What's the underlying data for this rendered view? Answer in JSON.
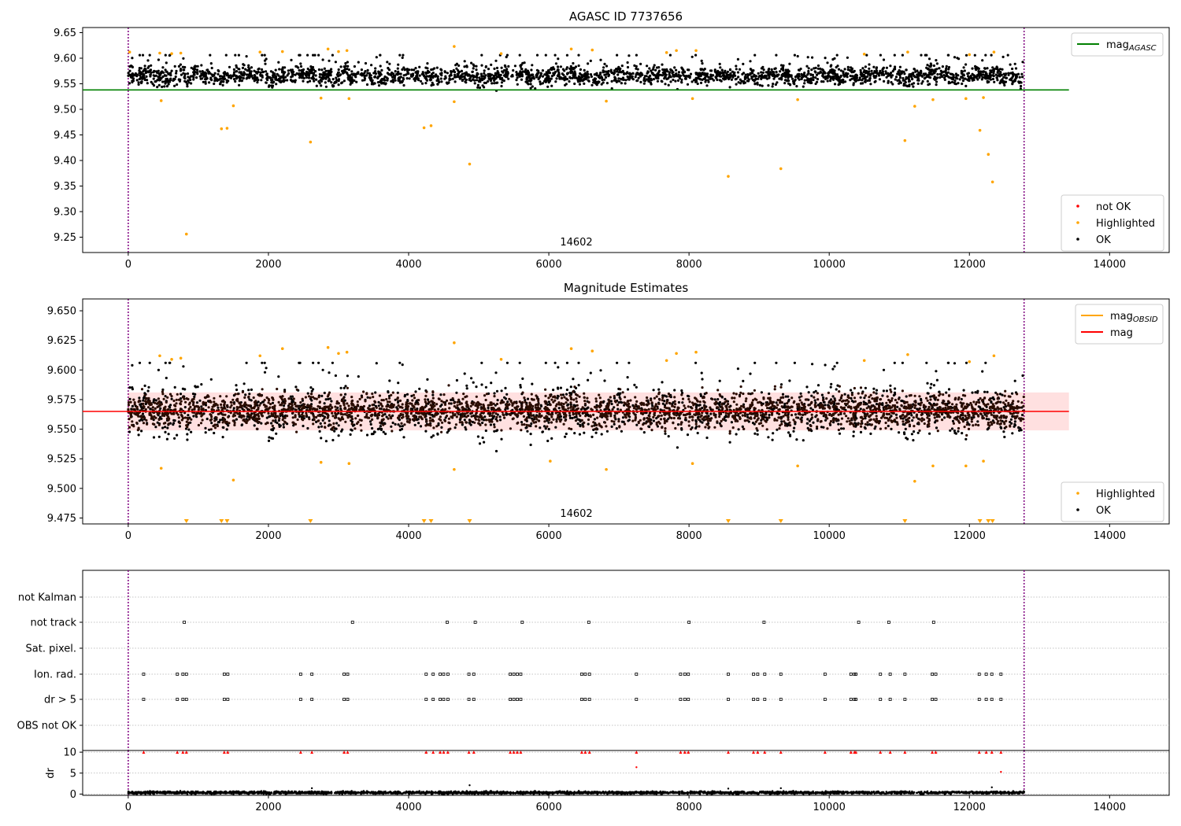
{
  "chart_data": [
    {
      "type": "scatter",
      "title": "AGASC ID 7737656",
      "xlim": [
        -650,
        14850
      ],
      "ylim": [
        9.22,
        9.66
      ],
      "xticks": [
        0,
        2000,
        4000,
        6000,
        8000,
        10000,
        12000,
        14000
      ],
      "yticks": [
        9.25,
        9.3,
        9.35,
        9.4,
        9.45,
        9.5,
        9.55,
        9.6,
        9.65
      ],
      "vlines": [
        0,
        12780
      ],
      "hlines": [
        {
          "name": "mag_AGASC",
          "y": 9.538,
          "x_range": [
            -650,
            13420
          ],
          "color": "#008000"
        }
      ],
      "annotation": "14602",
      "bulk": {
        "x_range": [
          0,
          12780
        ],
        "center": 9.566,
        "low": 9.53,
        "high": 9.606,
        "color": "#000000"
      },
      "highlighted_points": [
        [
          20,
          9.612
        ],
        [
          470,
          9.517
        ],
        [
          830,
          9.256
        ],
        [
          1330,
          9.462
        ],
        [
          1410,
          9.463
        ],
        [
          1500,
          9.507
        ],
        [
          2600,
          9.436
        ],
        [
          2750,
          9.522
        ],
        [
          3150,
          9.521
        ],
        [
          4220,
          9.464
        ],
        [
          4320,
          9.468
        ],
        [
          4650,
          9.515
        ],
        [
          4870,
          9.393
        ],
        [
          6820,
          9.516
        ],
        [
          8050,
          9.521
        ],
        [
          8560,
          9.369
        ],
        [
          9310,
          9.384
        ],
        [
          9550,
          9.519
        ],
        [
          11080,
          9.439
        ],
        [
          11220,
          9.506
        ],
        [
          11480,
          9.519
        ],
        [
          11950,
          9.521
        ],
        [
          12150,
          9.459
        ],
        [
          12200,
          9.523
        ],
        [
          12270,
          9.412
        ],
        [
          12330,
          9.358
        ],
        [
          450,
          9.61
        ],
        [
          620,
          9.609
        ],
        [
          750,
          9.61
        ],
        [
          1880,
          9.612
        ],
        [
          2200,
          9.613
        ],
        [
          2850,
          9.618
        ],
        [
          3000,
          9.613
        ],
        [
          3120,
          9.615
        ],
        [
          4650,
          9.623
        ],
        [
          5320,
          9.609
        ],
        [
          6320,
          9.618
        ],
        [
          6620,
          9.616
        ],
        [
          7680,
          9.611
        ],
        [
          7820,
          9.615
        ],
        [
          8100,
          9.615
        ],
        [
          10500,
          9.608
        ],
        [
          11120,
          9.612
        ],
        [
          12000,
          9.607
        ],
        [
          12350,
          9.612
        ]
      ],
      "legend": {
        "top": [
          {
            "label": "mag",
            "sub": "AGASC",
            "color": "#008000",
            "marker": "line"
          }
        ],
        "bottom": [
          {
            "label": "not OK",
            "color": "#ff0000",
            "marker": "dot"
          },
          {
            "label": "Highlighted",
            "color": "#ffa500",
            "marker": "dot"
          },
          {
            "label": "OK",
            "color": "#000000",
            "marker": "dot"
          }
        ]
      }
    },
    {
      "type": "scatter",
      "title": "Magnitude Estimates",
      "xlim": [
        -650,
        14850
      ],
      "ylim": [
        9.47,
        9.66
      ],
      "xticks": [
        0,
        2000,
        4000,
        6000,
        8000,
        10000,
        12000,
        14000
      ],
      "yticks": [
        9.475,
        9.5,
        9.525,
        9.55,
        9.575,
        9.6,
        9.625,
        9.65
      ],
      "vlines": [
        0,
        12780
      ],
      "hlines": [
        {
          "name": "mag",
          "y": 9.565,
          "x_range": [
            -650,
            13420
          ],
          "color": "#ff0000"
        },
        {
          "name": "mag_OBSID",
          "y": 9.565,
          "x_range": [
            0,
            12780
          ],
          "color": "#ffa500"
        }
      ],
      "band": {
        "y_range": [
          9.549,
          9.581
        ],
        "x_range": [
          0,
          13420
        ],
        "color": "#ff000022"
      },
      "annotation": "14602",
      "bulk": {
        "x_range": [
          0,
          12780
        ],
        "center": 9.565,
        "low": 9.52,
        "high": 9.606,
        "color": "#000000"
      },
      "highlighted_points": [
        [
          470,
          9.517
        ],
        [
          1500,
          9.507
        ],
        [
          2750,
          9.522
        ],
        [
          3150,
          9.521
        ],
        [
          4650,
          9.516
        ],
        [
          6020,
          9.523
        ],
        [
          6820,
          9.516
        ],
        [
          8050,
          9.521
        ],
        [
          9550,
          9.519
        ],
        [
          11220,
          9.506
        ],
        [
          11480,
          9.519
        ],
        [
          11950,
          9.519
        ],
        [
          12200,
          9.523
        ],
        [
          450,
          9.612
        ],
        [
          620,
          9.609
        ],
        [
          750,
          9.61
        ],
        [
          1880,
          9.612
        ],
        [
          2200,
          9.618
        ],
        [
          2850,
          9.619
        ],
        [
          3000,
          9.614
        ],
        [
          3120,
          9.615
        ],
        [
          4650,
          9.623
        ],
        [
          5320,
          9.609
        ],
        [
          6320,
          9.618
        ],
        [
          6620,
          9.616
        ],
        [
          7680,
          9.608
        ],
        [
          7820,
          9.614
        ],
        [
          8100,
          9.615
        ],
        [
          10500,
          9.608
        ],
        [
          11120,
          9.613
        ],
        [
          12000,
          9.607
        ],
        [
          12350,
          9.612
        ]
      ],
      "clipped_below": [
        830,
        1330,
        1410,
        2600,
        4220,
        4320,
        4870,
        8560,
        9310,
        11080,
        12150,
        12270,
        12330
      ],
      "legend": {
        "top": [
          {
            "label": "mag",
            "sub": "OBSID",
            "color": "#ffa500",
            "marker": "line"
          },
          {
            "label": "mag",
            "sub": "",
            "color": "#ff0000",
            "marker": "line"
          }
        ],
        "bottom": [
          {
            "label": "Highlighted",
            "color": "#ffa500",
            "marker": "dot"
          },
          {
            "label": "OK",
            "color": "#000000",
            "marker": "dot"
          }
        ]
      }
    },
    {
      "type": "scatter",
      "title": "",
      "xlim": [
        -650,
        14850
      ],
      "categories": [
        "not Kalman",
        "not track",
        "Sat. pixel.",
        "Ion. rad.",
        "dr > 5",
        "OBS not OK"
      ],
      "flag_rows": {
        "not track": [
          800,
          3200,
          4550,
          4950,
          5620,
          6570,
          8000,
          9070,
          10420,
          10850,
          11490
        ],
        "Ion. rad.": [
          220,
          700,
          780,
          830,
          1370,
          1420,
          2460,
          2620,
          3080,
          3130,
          4250,
          4350,
          4450,
          4500,
          4560,
          4860,
          4930,
          5450,
          5500,
          5550,
          5600,
          6470,
          6520,
          6580,
          7250,
          7880,
          7940,
          7990,
          8560,
          8920,
          8980,
          9080,
          9310,
          9940,
          10310,
          10360,
          10380,
          10730,
          10870,
          11080,
          11470,
          11520,
          12140,
          12240,
          12320,
          12450
        ],
        "dr > 5": [
          220,
          700,
          780,
          830,
          1370,
          1420,
          2460,
          2620,
          3080,
          3130,
          4250,
          4350,
          4450,
          4500,
          4560,
          4860,
          4930,
          5450,
          5500,
          5550,
          5600,
          6470,
          6520,
          6580,
          7250,
          7880,
          7940,
          7990,
          8560,
          8920,
          8980,
          9080,
          9310,
          9940,
          10310,
          10360,
          10380,
          10730,
          10870,
          11080,
          11470,
          11520,
          12140,
          12240,
          12320,
          12450
        ]
      },
      "vlines": [
        0,
        12780
      ]
    },
    {
      "type": "scatter",
      "title": "",
      "xlim": [
        -650,
        14850
      ],
      "ylim": [
        -0.3,
        10.4
      ],
      "ylabel": "dr",
      "yticks": [
        0,
        5,
        10
      ],
      "xticks": [
        0,
        2000,
        4000,
        6000,
        8000,
        10000,
        12000,
        14000
      ],
      "vlines": [
        0,
        12780
      ],
      "bulk": {
        "x_range": [
          0,
          12780
        ],
        "center": 0.35,
        "low": 0.0,
        "high": 0.75,
        "color": "#000000"
      },
      "outliers": [
        [
          2620,
          1.4
        ],
        [
          4870,
          2.1
        ],
        [
          8560,
          1.3
        ],
        [
          9310,
          1.4
        ],
        [
          12320,
          1.6
        ]
      ],
      "red_points": [
        [
          7250,
          6.4
        ],
        [
          12450,
          5.3
        ]
      ],
      "red_clipped_at_10": [
        220,
        700,
        780,
        830,
        1370,
        1420,
        2460,
        2620,
        3080,
        3130,
        4250,
        4350,
        4450,
        4500,
        4560,
        4860,
        4930,
        5450,
        5500,
        5550,
        5600,
        6470,
        6520,
        6580,
        7250,
        7880,
        7940,
        7990,
        8560,
        8920,
        8980,
        9080,
        9310,
        9940,
        10310,
        10360,
        10380,
        10730,
        10870,
        11080,
        11470,
        11520,
        12140,
        12240,
        12320,
        12450
      ]
    }
  ]
}
